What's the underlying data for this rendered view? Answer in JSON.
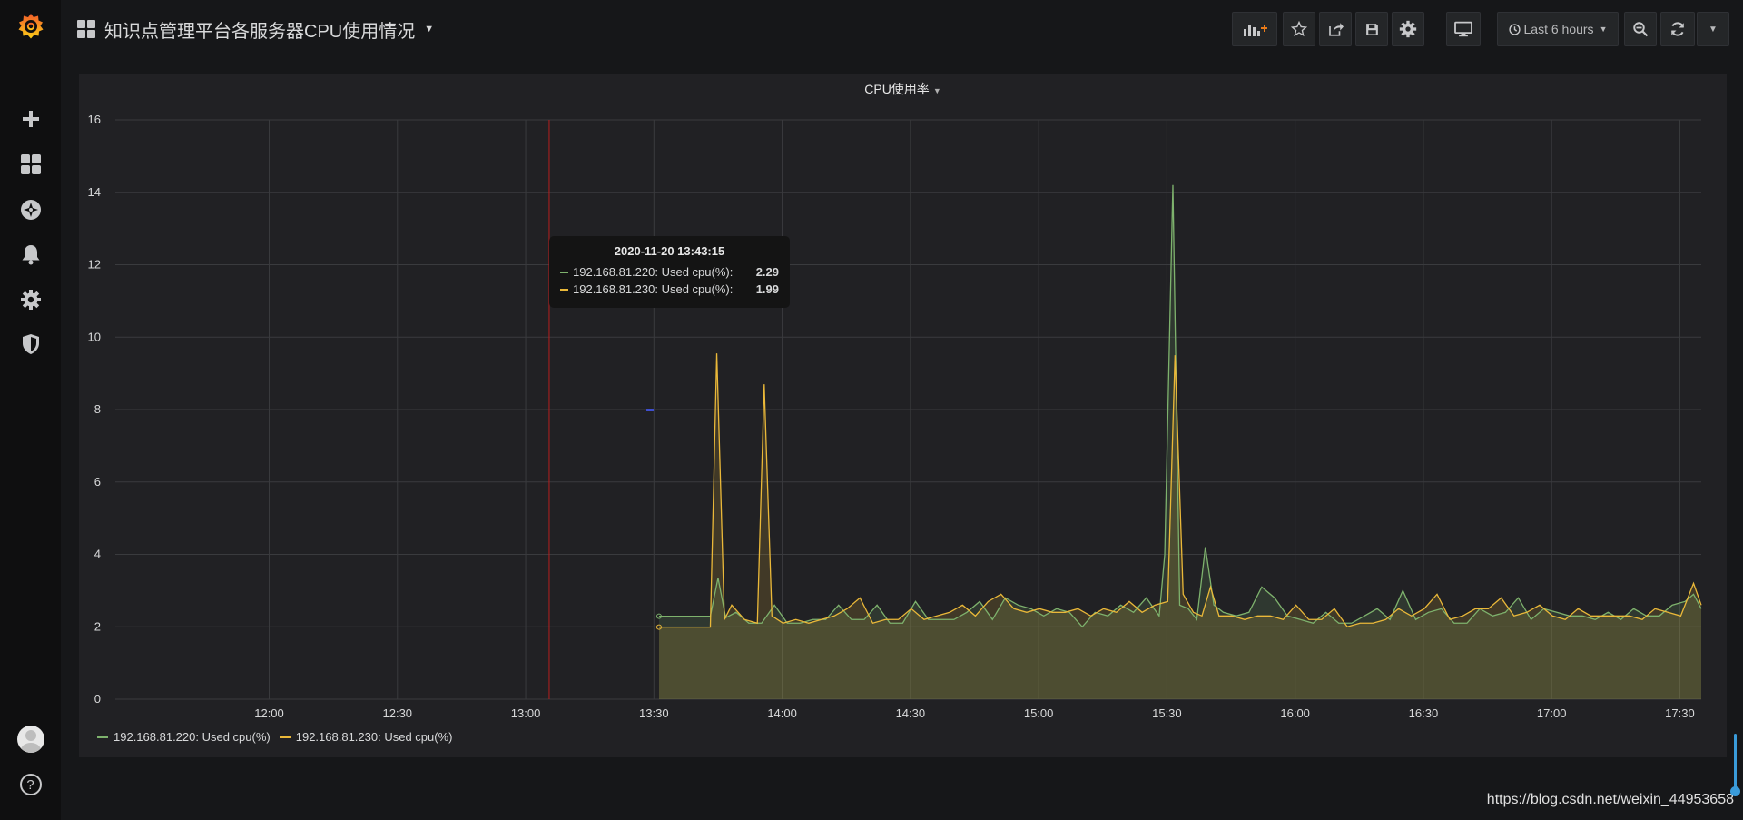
{
  "app": {
    "dashboard_title": "知识点管理平台各服务器CPU使用情况",
    "time_range_label": "Last 6 hours"
  },
  "sidebar": {
    "items": [
      {
        "icon": "plus-icon"
      },
      {
        "icon": "dashboards-icon"
      },
      {
        "icon": "explore-icon"
      },
      {
        "icon": "alerting-bell-icon"
      },
      {
        "icon": "configuration-gear-icon"
      },
      {
        "icon": "server-admin-shield-icon"
      }
    ],
    "bottom": [
      {
        "icon": "user-avatar"
      },
      {
        "icon": "help-icon",
        "label": "?"
      }
    ]
  },
  "toolbar": {
    "buttons": [
      "add-panel-icon",
      "star-icon",
      "share-icon",
      "save-icon",
      "settings-gear-icon",
      "tv-mode-icon",
      "zoom-out-icon",
      "refresh-icon",
      "refresh-interval-caret-icon"
    ]
  },
  "panel": {
    "title": "CPU使用率"
  },
  "tooltip": {
    "time": "2020-11-20 13:43:15",
    "rows": [
      {
        "name": "192.168.81.220: Used cpu(%):",
        "value": "2.29",
        "color": "#7eb26d"
      },
      {
        "name": "192.168.81.230: Used cpu(%):",
        "value": "1.99",
        "color": "#eab839"
      }
    ]
  },
  "chart_data": {
    "type": "line",
    "title": "CPU使用率",
    "ylim": [
      0,
      16
    ],
    "y_ticks": [
      "0",
      "2",
      "4",
      "6",
      "8",
      "10",
      "12",
      "14",
      "16"
    ],
    "x_ticks": [
      "12:00",
      "12:30",
      "13:00",
      "13:30",
      "14:00",
      "14:30",
      "15:00",
      "15:30",
      "16:00",
      "16:30",
      "17:00",
      "17:30"
    ],
    "x_range_minutes": [
      1404,
      1775
    ],
    "x_tick_minutes": [
      1440,
      1470,
      1500,
      1530,
      1560,
      1590,
      1620,
      1650,
      1680,
      1710,
      1740,
      1770
    ],
    "grid": true,
    "legend_placement": "bottom-left",
    "annotation_time": "13:05",
    "annotation_minutes": 1505.5,
    "series": [
      {
        "name": "192.168.81.220: Used cpu(%)",
        "color": "#7eb26d",
        "fill": true,
        "points": [
          [
            1531.2,
            2.29
          ],
          [
            1543.2,
            2.29
          ],
          [
            1545,
            3.35
          ],
          [
            1546.8,
            2.25
          ],
          [
            1549.2,
            2.4
          ],
          [
            1552.2,
            2.1
          ],
          [
            1555.2,
            2.1
          ],
          [
            1558.2,
            2.6
          ],
          [
            1561.2,
            2.1
          ],
          [
            1564.2,
            2.1
          ],
          [
            1567.2,
            2.2
          ],
          [
            1570.2,
            2.2
          ],
          [
            1573.2,
            2.6
          ],
          [
            1576.2,
            2.2
          ],
          [
            1579.2,
            2.2
          ],
          [
            1582.2,
            2.6
          ],
          [
            1585.2,
            2.1
          ],
          [
            1588.2,
            2.1
          ],
          [
            1591.2,
            2.7
          ],
          [
            1594.2,
            2.2
          ],
          [
            1597.2,
            2.2
          ],
          [
            1600.2,
            2.2
          ],
          [
            1603.2,
            2.4
          ],
          [
            1606.2,
            2.7
          ],
          [
            1609.2,
            2.2
          ],
          [
            1612.2,
            2.8
          ],
          [
            1615.2,
            2.6
          ],
          [
            1618.2,
            2.5
          ],
          [
            1621.2,
            2.3
          ],
          [
            1624.2,
            2.5
          ],
          [
            1627.2,
            2.4
          ],
          [
            1630.2,
            2.0
          ],
          [
            1633.2,
            2.4
          ],
          [
            1636.2,
            2.3
          ],
          [
            1639.2,
            2.6
          ],
          [
            1642.2,
            2.4
          ],
          [
            1645.2,
            2.8
          ],
          [
            1648.2,
            2.3
          ],
          [
            1649.5,
            4.0
          ],
          [
            1651.4,
            14.2
          ],
          [
            1653,
            2.6
          ],
          [
            1655,
            2.5
          ],
          [
            1657,
            2.2
          ],
          [
            1659,
            4.2
          ],
          [
            1661,
            2.6
          ],
          [
            1663.2,
            2.4
          ],
          [
            1666.2,
            2.3
          ],
          [
            1669.2,
            2.4
          ],
          [
            1672.2,
            3.1
          ],
          [
            1675.2,
            2.8
          ],
          [
            1678.2,
            2.3
          ],
          [
            1681.2,
            2.2
          ],
          [
            1684.2,
            2.1
          ],
          [
            1687.2,
            2.4
          ],
          [
            1690.2,
            2.1
          ],
          [
            1693.2,
            2.1
          ],
          [
            1696.2,
            2.3
          ],
          [
            1699.2,
            2.5
          ],
          [
            1702.2,
            2.2
          ],
          [
            1705.2,
            3.0
          ],
          [
            1708.2,
            2.2
          ],
          [
            1711.2,
            2.4
          ],
          [
            1714.2,
            2.5
          ],
          [
            1717.2,
            2.1
          ],
          [
            1720.2,
            2.1
          ],
          [
            1723.2,
            2.5
          ],
          [
            1726.2,
            2.3
          ],
          [
            1729.2,
            2.4
          ],
          [
            1732.2,
            2.8
          ],
          [
            1735.2,
            2.2
          ],
          [
            1738.2,
            2.5
          ],
          [
            1741.2,
            2.4
          ],
          [
            1744.2,
            2.3
          ],
          [
            1747.2,
            2.3
          ],
          [
            1750.2,
            2.2
          ],
          [
            1753.2,
            2.4
          ],
          [
            1756.2,
            2.2
          ],
          [
            1759.2,
            2.5
          ],
          [
            1762.2,
            2.3
          ],
          [
            1765.2,
            2.3
          ],
          [
            1768.2,
            2.6
          ],
          [
            1771.2,
            2.7
          ],
          [
            1773.2,
            2.9
          ],
          [
            1775,
            2.5
          ]
        ]
      },
      {
        "name": "192.168.81.230: Used cpu(%)",
        "color": "#eab839",
        "fill": true,
        "points": [
          [
            1531.2,
            1.99
          ],
          [
            1543.2,
            1.99
          ],
          [
            1544.7,
            9.55
          ],
          [
            1546.5,
            2.2
          ],
          [
            1548.2,
            2.6
          ],
          [
            1551.2,
            2.2
          ],
          [
            1554.2,
            2.1
          ],
          [
            1555.8,
            8.7
          ],
          [
            1557.6,
            2.3
          ],
          [
            1560.2,
            2.1
          ],
          [
            1563.2,
            2.2
          ],
          [
            1566.2,
            2.1
          ],
          [
            1569.2,
            2.2
          ],
          [
            1572.2,
            2.3
          ],
          [
            1575.2,
            2.5
          ],
          [
            1578.2,
            2.8
          ],
          [
            1581.2,
            2.1
          ],
          [
            1584.2,
            2.2
          ],
          [
            1587.2,
            2.2
          ],
          [
            1590.2,
            2.5
          ],
          [
            1593.2,
            2.2
          ],
          [
            1596.2,
            2.3
          ],
          [
            1599.2,
            2.4
          ],
          [
            1602.2,
            2.6
          ],
          [
            1605.2,
            2.3
          ],
          [
            1608.2,
            2.7
          ],
          [
            1611.2,
            2.9
          ],
          [
            1614.2,
            2.5
          ],
          [
            1617.2,
            2.4
          ],
          [
            1620.2,
            2.5
          ],
          [
            1623.2,
            2.4
          ],
          [
            1626.2,
            2.4
          ],
          [
            1629.2,
            2.5
          ],
          [
            1632.2,
            2.3
          ],
          [
            1635.2,
            2.5
          ],
          [
            1638.2,
            2.4
          ],
          [
            1641.2,
            2.7
          ],
          [
            1644.2,
            2.4
          ],
          [
            1647.2,
            2.6
          ],
          [
            1650.2,
            2.7
          ],
          [
            1651.9,
            9.5
          ],
          [
            1653.8,
            2.9
          ],
          [
            1656.2,
            2.4
          ],
          [
            1658.2,
            2.3
          ],
          [
            1660.2,
            3.1
          ],
          [
            1662.2,
            2.3
          ],
          [
            1665.2,
            2.3
          ],
          [
            1668.2,
            2.2
          ],
          [
            1671.2,
            2.3
          ],
          [
            1674.2,
            2.3
          ],
          [
            1677.2,
            2.2
          ],
          [
            1680.2,
            2.6
          ],
          [
            1683.2,
            2.2
          ],
          [
            1686.2,
            2.2
          ],
          [
            1689.2,
            2.5
          ],
          [
            1692.2,
            2.0
          ],
          [
            1695.2,
            2.1
          ],
          [
            1698.2,
            2.1
          ],
          [
            1701.2,
            2.2
          ],
          [
            1704.2,
            2.5
          ],
          [
            1707.2,
            2.3
          ],
          [
            1710.2,
            2.5
          ],
          [
            1713.2,
            2.9
          ],
          [
            1716.2,
            2.2
          ],
          [
            1719.2,
            2.3
          ],
          [
            1722.2,
            2.5
          ],
          [
            1725.2,
            2.5
          ],
          [
            1728.2,
            2.8
          ],
          [
            1731.2,
            2.3
          ],
          [
            1734.2,
            2.4
          ],
          [
            1737.2,
            2.6
          ],
          [
            1740.2,
            2.3
          ],
          [
            1743.2,
            2.2
          ],
          [
            1746.2,
            2.5
          ],
          [
            1749.2,
            2.3
          ],
          [
            1752.2,
            2.3
          ],
          [
            1755.2,
            2.3
          ],
          [
            1758.2,
            2.3
          ],
          [
            1761.2,
            2.2
          ],
          [
            1764.2,
            2.5
          ],
          [
            1767.2,
            2.4
          ],
          [
            1770.2,
            2.3
          ],
          [
            1773.2,
            3.2
          ],
          [
            1775,
            2.6
          ]
        ]
      }
    ]
  },
  "watermark": "https://blog.csdn.net/weixin_44953658"
}
